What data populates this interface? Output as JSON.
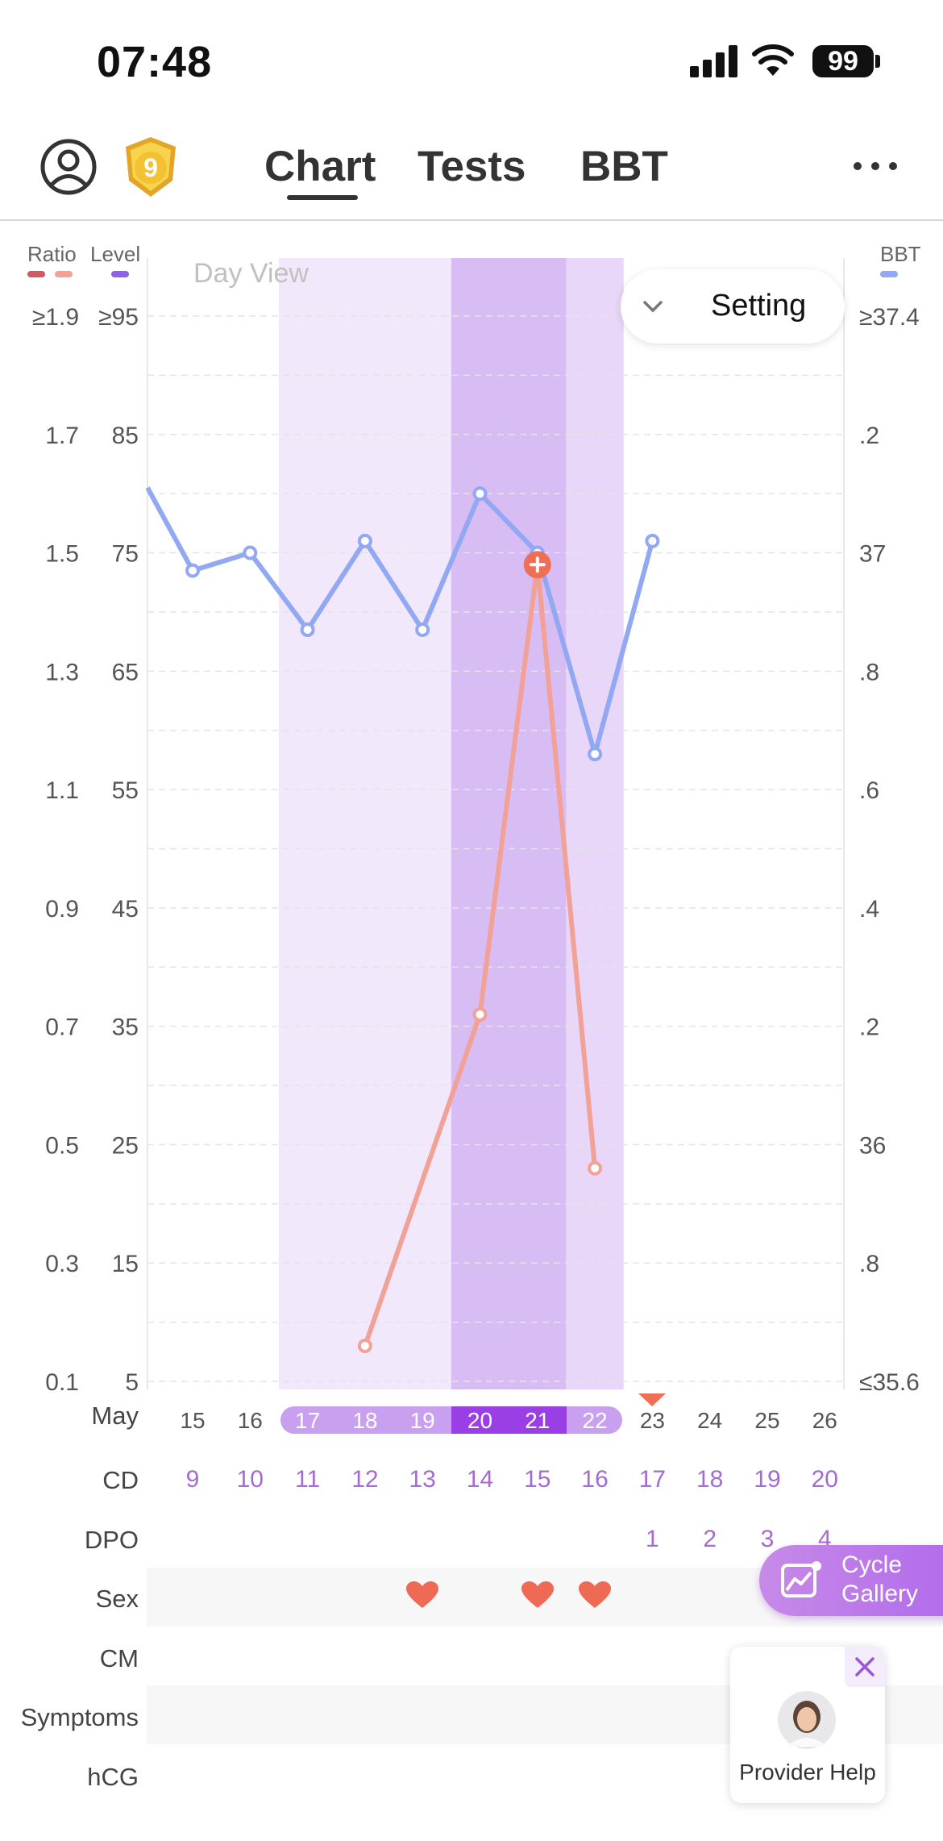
{
  "status_bar": {
    "time": "07:48",
    "battery": "99"
  },
  "header": {
    "tabs": [
      {
        "label": "Chart",
        "active": true
      },
      {
        "label": "Tests"
      },
      {
        "label": "BBT"
      }
    ],
    "more": "···",
    "badge_number": "9"
  },
  "chart_legend": {
    "ratio": "Ratio",
    "level": "Level",
    "bbt": "BBT",
    "ratio_colors": [
      "#cd5c62",
      "#f2a197"
    ],
    "level_color": "#8f62e6",
    "bbt_color": "#93a8f2"
  },
  "view": {
    "mode_label": "Day View",
    "setting_label": "Setting"
  },
  "axes": {
    "ratio_ticks": [
      "≥1.9",
      "1.7",
      "1.5",
      "1.3",
      "1.1",
      "0.9",
      "0.7",
      "0.5",
      "0.3",
      "0.1"
    ],
    "level_ticks": [
      "≥95",
      "85",
      "75",
      "65",
      "55",
      "45",
      "35",
      "25",
      "15",
      "5"
    ],
    "bbt_ticks": [
      "≥37.4",
      ".2",
      "37",
      ".8",
      ".6",
      ".4",
      ".2",
      "36",
      ".8",
      "≤35.6"
    ]
  },
  "chart_data": {
    "type": "line",
    "x": [
      "15",
      "16",
      "17",
      "18",
      "19",
      "20",
      "21",
      "22",
      "23",
      "24",
      "25",
      "26"
    ],
    "xlabel": "May",
    "series": [
      {
        "name": "Level",
        "color": "#f2a197",
        "points": [
          [
            "18",
            8
          ],
          [
            "20",
            36
          ],
          [
            "21",
            74
          ],
          [
            "22",
            23
          ]
        ],
        "peak_marker": "21"
      },
      {
        "name": "BBT",
        "color": "#93a8f2",
        "points": [
          [
            "15",
            36.97
          ],
          [
            "16",
            37.0
          ],
          [
            "17",
            36.87
          ],
          [
            "18",
            37.02
          ],
          [
            "19",
            36.87
          ],
          [
            "20",
            37.1
          ],
          [
            "21",
            37.0
          ],
          [
            "22",
            36.66
          ],
          [
            "23",
            37.02
          ]
        ],
        "continues_from_left": 37.11
      }
    ],
    "y_left_level": [
      5,
      95
    ],
    "y_left_ratio": [
      0.1,
      1.9
    ],
    "y_right_bbt": [
      35.6,
      37.4
    ],
    "fertile_window": {
      "start": "17",
      "end": "22",
      "peak_days": [
        "20",
        "21"
      ]
    }
  },
  "rows": {
    "month": "May",
    "dates": [
      "15",
      "16",
      "17",
      "18",
      "19",
      "20",
      "21",
      "22",
      "23",
      "24",
      "25",
      "26"
    ],
    "cd_label": "CD",
    "cd": [
      "9",
      "10",
      "11",
      "12",
      "13",
      "14",
      "15",
      "16",
      "17",
      "18",
      "19",
      "20"
    ],
    "dpo_label": "DPO",
    "dpo": [
      "",
      "",
      "",
      "",
      "",
      "",
      "",
      "",
      "1",
      "2",
      "3",
      "4"
    ],
    "sex_label": "Sex",
    "sex_days": [
      "19",
      "21",
      "22"
    ],
    "cm_label": "CM",
    "symptoms_label": "Symptoms",
    "hcg_label": "hCG"
  },
  "floating": {
    "cycle_gallery": [
      "Cycle",
      "Gallery"
    ],
    "provider_help": "Provider Help"
  }
}
